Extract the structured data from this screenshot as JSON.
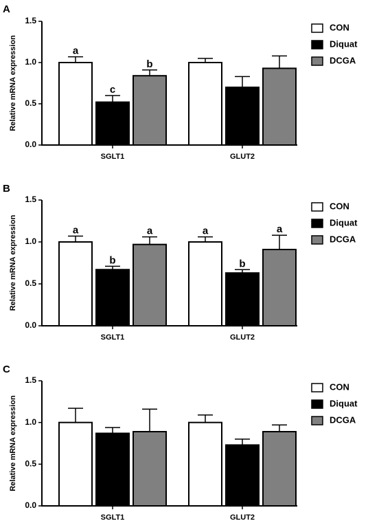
{
  "chart_data": [
    {
      "panel": "A",
      "type": "bar",
      "categories": [
        "SGLT1",
        "GLUT2"
      ],
      "ylabel": "Relative mRNA expression",
      "ylim": [
        0,
        1.5
      ],
      "yticks": [
        "0.0",
        "0.5",
        "1.0",
        "1.5"
      ],
      "legend_position": "top-right",
      "series": [
        {
          "name": "CON",
          "color": "#ffffff",
          "values": [
            1.0,
            1.0
          ],
          "errors": [
            0.07,
            0.05
          ],
          "labels": [
            "a",
            ""
          ]
        },
        {
          "name": "Diquat",
          "color": "#000000",
          "values": [
            0.52,
            0.7
          ],
          "errors": [
            0.08,
            0.13
          ],
          "labels": [
            "c",
            ""
          ]
        },
        {
          "name": "DCGA",
          "color": "#808080",
          "values": [
            0.84,
            0.93
          ],
          "errors": [
            0.07,
            0.15
          ],
          "labels": [
            "b",
            ""
          ]
        }
      ]
    },
    {
      "panel": "B",
      "type": "bar",
      "categories": [
        "SGLT1",
        "GLUT2"
      ],
      "ylabel": "Relative mRNA expression",
      "ylim": [
        0,
        1.5
      ],
      "yticks": [
        "0.0",
        "0.5",
        "1.0",
        "1.5"
      ],
      "legend_position": "top-right",
      "series": [
        {
          "name": "CON",
          "color": "#ffffff",
          "values": [
            1.0,
            1.0
          ],
          "errors": [
            0.07,
            0.06
          ],
          "labels": [
            "a",
            "a"
          ]
        },
        {
          "name": "Diquat",
          "color": "#000000",
          "values": [
            0.67,
            0.63
          ],
          "errors": [
            0.04,
            0.04
          ],
          "labels": [
            "b",
            "b"
          ]
        },
        {
          "name": "DCGA",
          "color": "#808080",
          "values": [
            0.97,
            0.91
          ],
          "errors": [
            0.09,
            0.17
          ],
          "labels": [
            "a",
            "a"
          ]
        }
      ]
    },
    {
      "panel": "C",
      "type": "bar",
      "categories": [
        "SGLT1",
        "GLUT2"
      ],
      "ylabel": "Relative mRNA expression",
      "ylim": [
        0,
        1.5
      ],
      "yticks": [
        "0.0",
        "0.5",
        "1.0",
        "1.5"
      ],
      "legend_position": "top-right",
      "series": [
        {
          "name": "CON",
          "color": "#ffffff",
          "values": [
            1.0,
            1.0
          ],
          "errors": [
            0.17,
            0.09
          ],
          "labels": [
            "",
            ""
          ]
        },
        {
          "name": "Diquat",
          "color": "#000000",
          "values": [
            0.87,
            0.73
          ],
          "errors": [
            0.07,
            0.07
          ],
          "labels": [
            "",
            ""
          ]
        },
        {
          "name": "DCGA",
          "color": "#808080",
          "values": [
            0.89,
            0.89
          ],
          "errors": [
            0.27,
            0.08
          ],
          "labels": [
            "",
            ""
          ]
        }
      ]
    }
  ]
}
